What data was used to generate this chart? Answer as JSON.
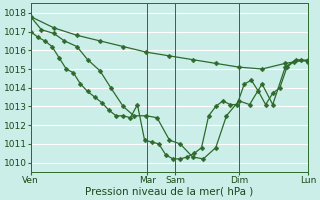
{
  "background_color": "#cceee8",
  "grid_color": "#ffffff",
  "line_color": "#2d6a2d",
  "xlabel": "Pression niveau de la mer( hPa )",
  "ylim": [
    1009.5,
    1018.5
  ],
  "yticks": [
    1010,
    1011,
    1012,
    1013,
    1014,
    1015,
    1016,
    1017,
    1018
  ],
  "day_labels": [
    "Ven",
    "Mar",
    "Sam",
    "Dim",
    "Lun"
  ],
  "day_positions": [
    0.0,
    0.42,
    0.52,
    0.75,
    1.0
  ],
  "total_points": 157,
  "line1_x": [
    0,
    13,
    26,
    39,
    52,
    65,
    78,
    91,
    104,
    117,
    130,
    143,
    156
  ],
  "line1_y": [
    1017.8,
    1017.2,
    1016.8,
    1016.5,
    1016.2,
    1015.9,
    1015.7,
    1015.5,
    1015.3,
    1015.1,
    1015.0,
    1015.3,
    1015.5
  ],
  "line2_x": [
    0,
    4,
    8,
    12,
    16,
    20,
    24,
    28,
    32,
    36,
    40,
    44,
    48,
    52,
    56,
    60,
    64,
    68,
    72,
    76,
    80,
    84,
    88,
    92,
    96,
    100,
    104,
    108,
    112,
    116,
    120,
    124,
    128,
    132,
    136,
    140,
    144,
    148,
    152,
    156
  ],
  "line2_y": [
    1017.0,
    1016.7,
    1016.5,
    1016.2,
    1015.6,
    1015.0,
    1014.8,
    1014.2,
    1013.8,
    1013.5,
    1013.2,
    1012.8,
    1012.5,
    1012.5,
    1012.4,
    1013.1,
    1011.2,
    1011.1,
    1011.0,
    1010.4,
    1010.2,
    1010.2,
    1010.3,
    1010.5,
    1010.8,
    1012.5,
    1013.0,
    1013.3,
    1013.1,
    1013.1,
    1014.2,
    1014.4,
    1013.8,
    1013.1,
    1013.7,
    1014.0,
    1015.1,
    1015.4,
    1015.5,
    1015.4
  ],
  "line3_x": [
    0,
    6,
    13,
    19,
    26,
    32,
    39,
    45,
    52,
    58,
    65,
    71,
    78,
    84,
    91,
    97,
    104,
    110,
    117,
    123,
    130,
    136,
    143,
    149,
    156
  ],
  "line3_y": [
    1017.8,
    1017.1,
    1016.9,
    1016.5,
    1016.2,
    1015.5,
    1014.9,
    1014.0,
    1013.0,
    1012.5,
    1012.5,
    1012.4,
    1011.2,
    1011.0,
    1010.3,
    1010.2,
    1010.8,
    1012.5,
    1013.3,
    1013.1,
    1014.2,
    1013.1,
    1015.1,
    1015.5,
    1015.4
  ]
}
